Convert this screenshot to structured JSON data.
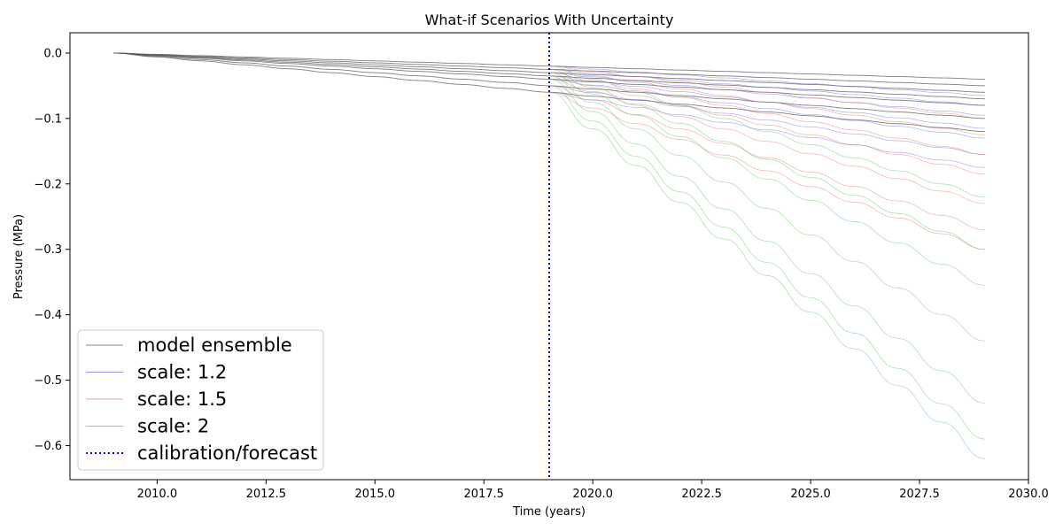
{
  "chart_data": {
    "type": "line",
    "title": "What-if Scenarios With Uncertainty",
    "xlabel": "Time (years)",
    "ylabel": "Pressure (MPa)",
    "xlim": [
      2008.0,
      2030.0
    ],
    "ylim": [
      -0.652,
      0.031
    ],
    "xticks": [
      2010.0,
      2012.5,
      2015.0,
      2017.5,
      2020.0,
      2022.5,
      2025.0,
      2027.5,
      2030.0
    ],
    "xtick_labels": [
      "2010.0",
      "2012.5",
      "2015.0",
      "2017.5",
      "2020.0",
      "2022.5",
      "2025.0",
      "2027.5",
      "2030.0"
    ],
    "yticks": [
      0.0,
      -0.1,
      -0.2,
      -0.3,
      -0.4,
      -0.5,
      -0.6
    ],
    "ytick_labels": [
      "0.0",
      "−0.1",
      "−0.2",
      "−0.3",
      "−0.4",
      "−0.5",
      "−0.6"
    ],
    "grid": false,
    "legend_position": "lower-left",
    "calibration_forecast_x": 2019.0,
    "start_x": 2009.0,
    "end_x": 2029.0,
    "legend": [
      {
        "label": "model ensemble",
        "color": "#555555",
        "style": "solid"
      },
      {
        "label": "scale: 1.2",
        "color": "#6a6ae0",
        "style": "solid"
      },
      {
        "label": "scale: 1.5",
        "color": "#e07070",
        "style": "solid"
      },
      {
        "label": "scale: 2",
        "color": "#60c060",
        "style": "solid"
      },
      {
        "label": "calibration/forecast",
        "color": "#0000cc",
        "style": "dotted"
      }
    ],
    "series": [
      {
        "group": "model ensemble",
        "color": "#555555",
        "x": [
          2009.0,
          2019.0,
          2029.0
        ],
        "y": [
          0.0,
          -0.02,
          -0.04
        ]
      },
      {
        "group": "model ensemble",
        "color": "#555555",
        "x": [
          2009.0,
          2019.0,
          2029.0
        ],
        "y": [
          0.0,
          -0.025,
          -0.05
        ]
      },
      {
        "group": "model ensemble",
        "color": "#555555",
        "x": [
          2009.0,
          2019.0,
          2029.0
        ],
        "y": [
          0.0,
          -0.03,
          -0.06
        ]
      },
      {
        "group": "model ensemble",
        "color": "#555555",
        "x": [
          2009.0,
          2019.0,
          2029.0
        ],
        "y": [
          0.0,
          -0.035,
          -0.07
        ]
      },
      {
        "group": "model ensemble",
        "color": "#555555",
        "x": [
          2009.0,
          2019.0,
          2029.0
        ],
        "y": [
          0.0,
          -0.04,
          -0.08
        ]
      },
      {
        "group": "model ensemble",
        "color": "#555555",
        "x": [
          2009.0,
          2019.0,
          2029.0
        ],
        "y": [
          0.0,
          -0.05,
          -0.1
        ]
      },
      {
        "group": "model ensemble",
        "color": "#555555",
        "x": [
          2009.0,
          2019.0,
          2029.0
        ],
        "y": [
          0.0,
          -0.06,
          -0.12
        ]
      },
      {
        "group": "scale: 1.2",
        "color": "#6a6ae0",
        "x": [
          2019.0,
          2029.0
        ],
        "y": [
          -0.02,
          -0.065
        ]
      },
      {
        "group": "scale: 1.2",
        "color": "#6a6ae0",
        "x": [
          2019.0,
          2029.0
        ],
        "y": [
          -0.025,
          -0.08
        ]
      },
      {
        "group": "scale: 1.2",
        "color": "#6a6ae0",
        "x": [
          2019.0,
          2029.0
        ],
        "y": [
          -0.03,
          -0.095
        ]
      },
      {
        "group": "scale: 1.2",
        "color": "#6a6ae0",
        "x": [
          2019.0,
          2029.0
        ],
        "y": [
          -0.035,
          -0.115
        ]
      },
      {
        "group": "scale: 1.2",
        "color": "#6a6ae0",
        "x": [
          2019.0,
          2029.0
        ],
        "y": [
          -0.04,
          -0.13
        ]
      },
      {
        "group": "scale: 1.2",
        "color": "#6a6ae0",
        "x": [
          2019.0,
          2029.0
        ],
        "y": [
          -0.05,
          -0.155
        ]
      },
      {
        "group": "scale: 1.2",
        "color": "#6a6ae0",
        "x": [
          2019.0,
          2029.0
        ],
        "y": [
          -0.06,
          -0.175
        ]
      },
      {
        "group": "scale: 1.5",
        "color": "#e07070",
        "x": [
          2019.0,
          2029.0
        ],
        "y": [
          -0.02,
          -0.1
        ]
      },
      {
        "group": "scale: 1.5",
        "color": "#e07070",
        "x": [
          2019.0,
          2029.0
        ],
        "y": [
          -0.025,
          -0.125
        ]
      },
      {
        "group": "scale: 1.5",
        "color": "#e07070",
        "x": [
          2019.0,
          2029.0
        ],
        "y": [
          -0.03,
          -0.155
        ]
      },
      {
        "group": "scale: 1.5",
        "color": "#e07070",
        "x": [
          2019.0,
          2029.0
        ],
        "y": [
          -0.035,
          -0.185
        ]
      },
      {
        "group": "scale: 1.5",
        "color": "#e07070",
        "x": [
          2019.0,
          2029.0
        ],
        "y": [
          -0.04,
          -0.23
        ]
      },
      {
        "group": "scale: 1.5",
        "color": "#e07070",
        "x": [
          2019.0,
          2029.0
        ],
        "y": [
          -0.05,
          -0.27
        ]
      },
      {
        "group": "scale: 1.5",
        "color": "#e07070",
        "x": [
          2019.0,
          2029.0
        ],
        "y": [
          -0.06,
          -0.3
        ]
      },
      {
        "group": "scale: 2",
        "color": "#60c060",
        "x": [
          2019.0,
          2029.0
        ],
        "y": [
          -0.02,
          -0.22
        ]
      },
      {
        "group": "scale: 2",
        "color": "#60c060",
        "x": [
          2019.0,
          2029.0
        ],
        "y": [
          -0.025,
          -0.3
        ]
      },
      {
        "group": "scale: 2",
        "color": "#60c060",
        "x": [
          2019.0,
          2029.0
        ],
        "y": [
          -0.03,
          -0.355
        ]
      },
      {
        "group": "scale: 2",
        "color": "#60c060",
        "x": [
          2019.0,
          2029.0
        ],
        "y": [
          -0.035,
          -0.44
        ]
      },
      {
        "group": "scale: 2",
        "color": "#60c060",
        "x": [
          2019.0,
          2029.0
        ],
        "y": [
          -0.04,
          -0.535
        ]
      },
      {
        "group": "scale: 2",
        "color": "#60c060",
        "x": [
          2019.0,
          2029.0
        ],
        "y": [
          -0.05,
          -0.59
        ]
      },
      {
        "group": "scale: 2",
        "color": "#60c060",
        "x": [
          2019.0,
          2029.0
        ],
        "y": [
          -0.06,
          -0.62
        ]
      }
    ]
  }
}
